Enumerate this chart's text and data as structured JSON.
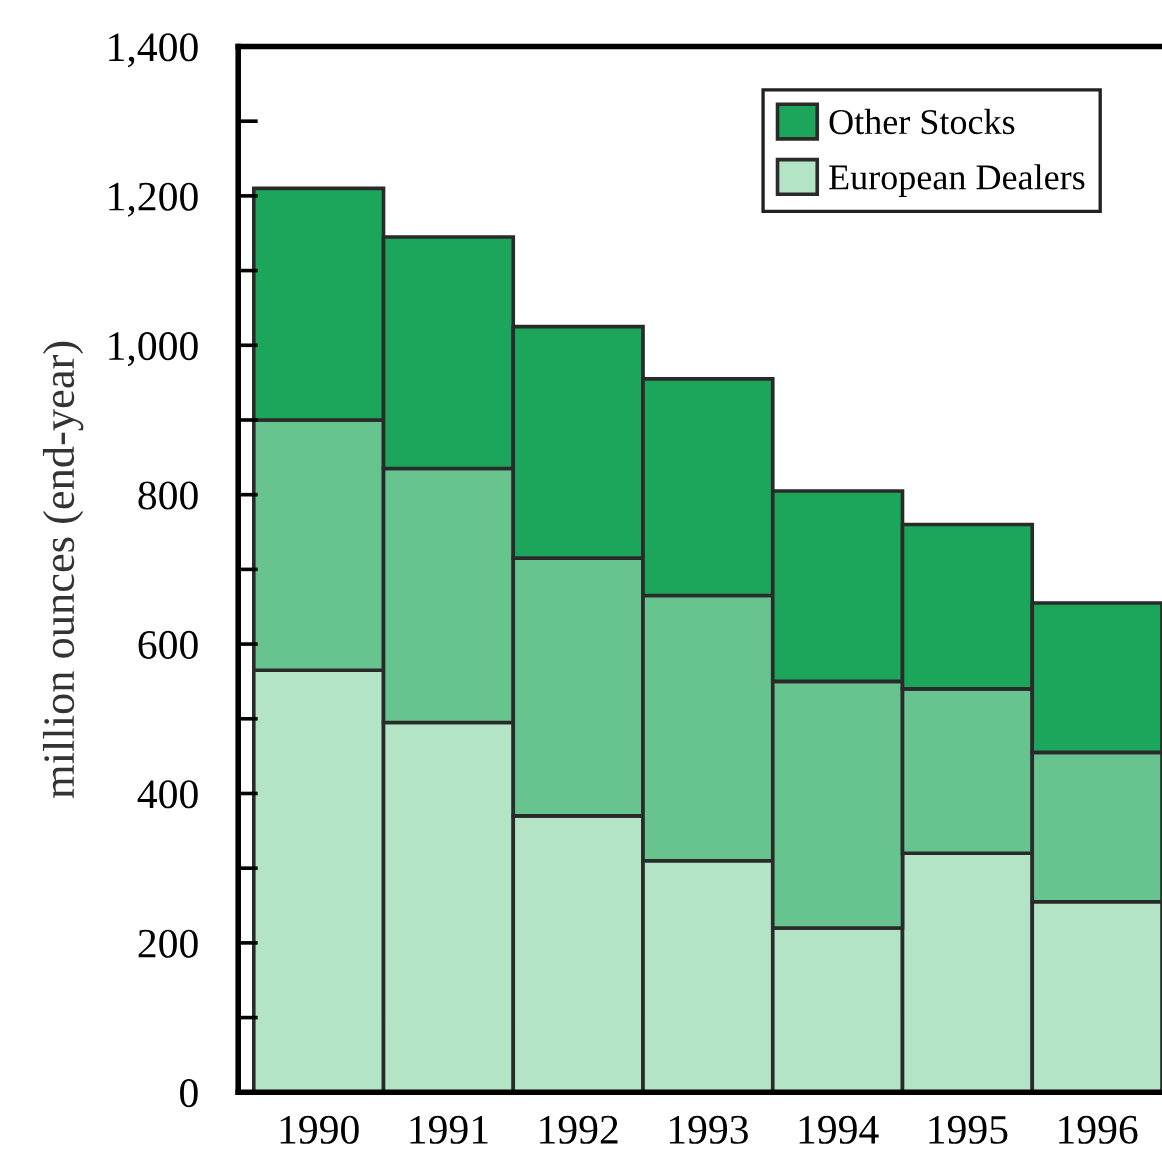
{
  "chart_data": {
    "type": "bar",
    "stacked": true,
    "ylabel": "million ounces (end-year)",
    "categories": [
      "1990",
      "1991",
      "1992",
      "1993",
      "1994",
      "1995",
      "1996"
    ],
    "series": [
      {
        "name": "European Dealers",
        "color": "#b4e4c6",
        "values": [
          565,
          495,
          370,
          310,
          220,
          320,
          255
        ]
      },
      {
        "color": "#68c48e",
        "values": [
          335,
          340,
          345,
          355,
          330,
          220,
          200
        ]
      },
      {
        "name": "Other Stocks",
        "color": "#1ca65c",
        "values": [
          310,
          310,
          310,
          290,
          255,
          220,
          200
        ]
      }
    ],
    "ylim": [
      0,
      1400
    ],
    "yticks": [
      0,
      {
        "value": 100,
        "label": null
      },
      {
        "value": 200,
        "label": "200"
      },
      {
        "value": 300,
        "label": null
      },
      {
        "value": 400,
        "label": "400"
      },
      {
        "value": 500,
        "label": null
      },
      {
        "value": 600,
        "label": "600"
      },
      {
        "value": 700,
        "label": null
      },
      {
        "value": 800,
        "label": "800"
      },
      {
        "value": 900,
        "label": null
      },
      {
        "value": 1000,
        "label": "1,000"
      },
      {
        "value": 1100,
        "label": null
      },
      {
        "value": 1200,
        "label": "1,200"
      },
      {
        "value": 1300,
        "label": null
      },
      {
        "value": 1400,
        "label": "1,400"
      }
    ],
    "grid": false,
    "legend": "top right"
  }
}
